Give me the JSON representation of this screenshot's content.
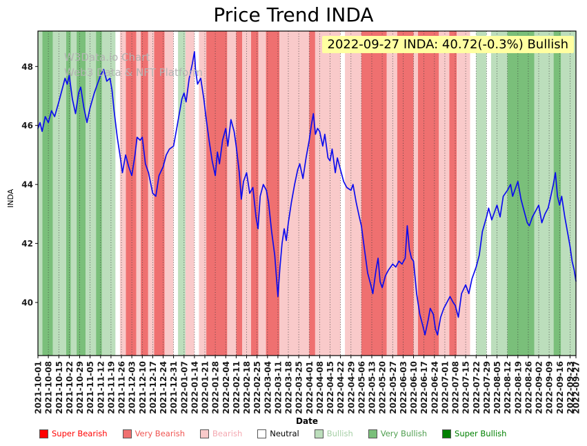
{
  "title": "Price Trend INDA",
  "annotation": "2022-09-27 INDA: 40.72(-0.3%) Bullish",
  "watermark": {
    "line1": "W3Data.io Chart",
    "line2": "Web3 Data & NFT Platform"
  },
  "chart_data": {
    "type": "line",
    "title": "Price Trend INDA",
    "xlabel": "Date",
    "ylabel": "INDA",
    "ylim": [
      38.2,
      49.2
    ],
    "yticks": [
      40,
      42,
      44,
      46,
      48
    ],
    "grid": "vertical-dotted",
    "legend_position": "bottom",
    "x_unit": "weeks_from_first_tick",
    "x_max": 51.57,
    "x_tick_labels": [
      "2021-10-01",
      "2021-10-08",
      "2021-10-15",
      "2021-10-22",
      "2021-10-29",
      "2021-11-05",
      "2021-11-12",
      "2021-11-19",
      "2021-11-26",
      "2021-12-03",
      "2021-12-10",
      "2021-12-17",
      "2021-12-24",
      "2021-12-31",
      "2022-01-07",
      "2022-01-14",
      "2022-01-21",
      "2022-01-28",
      "2022-02-04",
      "2022-02-11",
      "2022-02-18",
      "2022-02-25",
      "2022-03-04",
      "2022-03-11",
      "2022-03-18",
      "2022-03-25",
      "2022-04-01",
      "2022-04-08",
      "2022-04-15",
      "2022-04-22",
      "2022-04-29",
      "2022-05-06",
      "2022-05-13",
      "2022-05-20",
      "2022-05-27",
      "2022-06-03",
      "2022-06-10",
      "2022-06-17",
      "2022-06-24",
      "2022-07-01",
      "2022-07-08",
      "2022-07-15",
      "2022-07-22",
      "2022-07-29",
      "2022-08-05",
      "2022-08-12",
      "2022-08-19",
      "2022-08-26",
      "2022-09-02",
      "2022-09-09",
      "2022-09-16",
      "2022-09-23",
      "2022-09-27"
    ],
    "x_tick_weeks": [
      0,
      1,
      2,
      3,
      4,
      5,
      6,
      7,
      8,
      9,
      10,
      11,
      12,
      13,
      14,
      15,
      16,
      17,
      18,
      19,
      20,
      21,
      22,
      23,
      24,
      25,
      26,
      27,
      28,
      29,
      30,
      31,
      32,
      33,
      34,
      35,
      36,
      37,
      38,
      39,
      40,
      41,
      42,
      43,
      44,
      45,
      46,
      47,
      48,
      49,
      50,
      51,
      51.57
    ],
    "series": [
      {
        "name": "INDA",
        "color": "#0b0bee",
        "x": [
          0,
          0.2,
          0.4,
          0.7,
          1.0,
          1.3,
          1.6,
          2.0,
          2.3,
          2.6,
          2.8,
          3.0,
          3.3,
          3.6,
          3.9,
          4.1,
          4.4,
          4.7,
          5.0,
          5.4,
          5.7,
          6.0,
          6.3,
          6.6,
          6.9,
          7.1,
          7.3,
          7.6,
          7.9,
          8.1,
          8.4,
          8.7,
          9.0,
          9.3,
          9.5,
          9.8,
          10.0,
          10.3,
          10.6,
          11.0,
          11.3,
          11.6,
          12.0,
          12.3,
          12.6,
          13.0,
          13.3,
          13.5,
          13.8,
          14.0,
          14.2,
          14.5,
          14.8,
          15.0,
          15.1,
          15.3,
          15.6,
          15.9,
          16.1,
          16.4,
          16.7,
          17.0,
          17.2,
          17.4,
          17.7,
          18.0,
          18.2,
          18.5,
          18.8,
          19.0,
          19.3,
          19.5,
          19.7,
          20.0,
          20.3,
          20.6,
          20.9,
          21.1,
          21.3,
          21.6,
          21.9,
          22.1,
          22.4,
          22.7,
          23.0,
          23.2,
          23.4,
          23.6,
          23.8,
          24.0,
          24.3,
          24.6,
          24.9,
          25.1,
          25.4,
          25.7,
          26.0,
          26.2,
          26.4,
          26.6,
          26.8,
          27.0,
          27.3,
          27.5,
          27.8,
          28.0,
          28.2,
          28.5,
          28.7,
          29.0,
          29.3,
          29.6,
          30.0,
          30.2,
          30.5,
          30.8,
          31.0,
          31.3,
          31.6,
          31.9,
          32.1,
          32.4,
          32.6,
          32.8,
          33.0,
          33.3,
          33.6,
          34.0,
          34.3,
          34.6,
          34.9,
          35.2,
          35.4,
          35.6,
          35.8,
          36.0,
          36.3,
          36.6,
          36.9,
          37.1,
          37.4,
          37.6,
          37.9,
          38.1,
          38.3,
          38.6,
          38.9,
          39.2,
          39.5,
          39.8,
          40.0,
          40.3,
          40.6,
          41.0,
          41.3,
          41.6,
          42.0,
          42.3,
          42.6,
          43.0,
          43.2,
          43.5,
          43.8,
          44.0,
          44.3,
          44.6,
          45.0,
          45.3,
          45.5,
          45.8,
          46.0,
          46.3,
          46.6,
          46.9,
          47.1,
          47.4,
          47.7,
          48.0,
          48.3,
          48.6,
          48.9,
          49.1,
          49.4,
          49.6,
          49.8,
          50.0,
          50.2,
          50.5,
          50.8,
          51.0,
          51.2,
          51.4,
          51.57
        ],
        "y": [
          45.9,
          46.1,
          45.8,
          46.3,
          46.1,
          46.5,
          46.3,
          46.8,
          47.2,
          47.6,
          47.4,
          47.7,
          46.9,
          46.4,
          47.1,
          47.3,
          46.6,
          46.1,
          46.6,
          47.1,
          47.4,
          47.7,
          47.9,
          47.5,
          47.6,
          47.2,
          46.5,
          45.6,
          44.9,
          44.4,
          45.0,
          44.6,
          44.3,
          45.0,
          45.6,
          45.5,
          45.6,
          44.7,
          44.4,
          43.7,
          43.6,
          44.3,
          44.6,
          45.0,
          45.2,
          45.3,
          45.9,
          46.3,
          46.9,
          47.1,
          46.8,
          47.6,
          48.1,
          48.5,
          47.9,
          47.4,
          47.6,
          46.9,
          46.3,
          45.5,
          44.8,
          44.3,
          45.1,
          44.7,
          45.5,
          45.9,
          45.3,
          46.2,
          45.8,
          45.3,
          44.4,
          43.5,
          44.1,
          44.4,
          43.7,
          43.9,
          42.9,
          42.5,
          43.6,
          44.0,
          43.8,
          43.4,
          42.4,
          41.6,
          40.2,
          41.2,
          42.0,
          42.5,
          42.1,
          42.7,
          43.4,
          44.0,
          44.5,
          44.7,
          44.2,
          44.9,
          45.5,
          46.0,
          46.4,
          45.7,
          45.9,
          45.8,
          45.3,
          45.7,
          44.9,
          44.8,
          45.2,
          44.4,
          44.9,
          44.5,
          44.1,
          43.9,
          43.8,
          44.0,
          43.4,
          42.9,
          42.6,
          41.8,
          41.0,
          40.6,
          40.3,
          41.1,
          41.5,
          40.7,
          40.5,
          40.9,
          41.1,
          41.3,
          41.2,
          41.4,
          41.3,
          41.5,
          42.6,
          41.8,
          41.5,
          41.4,
          40.3,
          39.6,
          39.2,
          38.9,
          39.4,
          39.8,
          39.6,
          39.1,
          38.9,
          39.5,
          39.8,
          40.0,
          40.2,
          40.0,
          39.9,
          39.5,
          40.3,
          40.6,
          40.3,
          40.8,
          41.2,
          41.6,
          42.4,
          42.9,
          43.2,
          42.8,
          43.1,
          43.3,
          42.9,
          43.6,
          43.8,
          44.0,
          43.6,
          43.9,
          44.1,
          43.5,
          43.1,
          42.7,
          42.6,
          42.9,
          43.1,
          43.3,
          42.7,
          43.0,
          43.2,
          43.5,
          44.0,
          44.4,
          43.6,
          43.3,
          43.6,
          42.9,
          42.3,
          41.9,
          41.4,
          41.1,
          40.72
        ]
      }
    ],
    "sentiment_colors": {
      "super_bearish": "#ff2a2a",
      "very_bearish": "#ef7070",
      "bearish": "#f9caca",
      "neutral": "#ffffff",
      "bullish": "#bcdebc",
      "very_bullish": "#7abf7a",
      "super_bullish": "#1e8c1e"
    },
    "bands": [
      [
        0,
        0.43,
        "bullish"
      ],
      [
        0.43,
        1.43,
        "very_bullish"
      ],
      [
        1.43,
        2.71,
        "bullish"
      ],
      [
        2.71,
        3.14,
        "very_bullish"
      ],
      [
        3.14,
        3.71,
        "bullish"
      ],
      [
        3.71,
        4.57,
        "very_bullish"
      ],
      [
        4.57,
        5.57,
        "bullish"
      ],
      [
        5.57,
        6.14,
        "very_bullish"
      ],
      [
        6.14,
        7.43,
        "bullish"
      ],
      [
        7.43,
        7.86,
        "neutral"
      ],
      [
        7.86,
        8.43,
        "bearish"
      ],
      [
        8.43,
        9.43,
        "very_bearish"
      ],
      [
        9.43,
        9.86,
        "bearish"
      ],
      [
        9.86,
        10.57,
        "very_bearish"
      ],
      [
        10.57,
        11.14,
        "bearish"
      ],
      [
        11.14,
        12.14,
        "very_bearish"
      ],
      [
        12.14,
        13.0,
        "bearish"
      ],
      [
        13.0,
        13.43,
        "neutral"
      ],
      [
        13.43,
        14.14,
        "bullish"
      ],
      [
        14.14,
        15.0,
        "bearish"
      ],
      [
        15.0,
        15.43,
        "neutral"
      ],
      [
        15.43,
        16.14,
        "bearish"
      ],
      [
        16.14,
        18.14,
        "very_bearish"
      ],
      [
        18.14,
        19.0,
        "bearish"
      ],
      [
        19.0,
        19.57,
        "very_bearish"
      ],
      [
        19.57,
        20.43,
        "bearish"
      ],
      [
        20.43,
        21.14,
        "very_bearish"
      ],
      [
        21.14,
        21.86,
        "bearish"
      ],
      [
        21.86,
        23.14,
        "very_bearish"
      ],
      [
        23.14,
        26.0,
        "bearish"
      ],
      [
        26.0,
        26.57,
        "very_bearish"
      ],
      [
        26.57,
        29.0,
        "bearish"
      ],
      [
        29.0,
        29.43,
        "neutral"
      ],
      [
        29.43,
        31.0,
        "bearish"
      ],
      [
        31.0,
        33.43,
        "very_bearish"
      ],
      [
        33.43,
        34.43,
        "bearish"
      ],
      [
        34.43,
        36.0,
        "very_bearish"
      ],
      [
        36.0,
        36.43,
        "bearish"
      ],
      [
        36.43,
        38.43,
        "very_bearish"
      ],
      [
        38.43,
        39.43,
        "bearish"
      ],
      [
        39.43,
        40.14,
        "very_bearish"
      ],
      [
        40.14,
        41.43,
        "bearish"
      ],
      [
        41.43,
        42.0,
        "neutral"
      ],
      [
        42.0,
        43.0,
        "bullish"
      ],
      [
        43.0,
        43.43,
        "neutral"
      ],
      [
        43.43,
        45.0,
        "bullish"
      ],
      [
        45.0,
        47.57,
        "very_bullish"
      ],
      [
        47.57,
        49.43,
        "bullish"
      ],
      [
        49.43,
        50.14,
        "very_bullish"
      ],
      [
        50.14,
        51.57,
        "bullish"
      ]
    ],
    "legend": [
      {
        "label": "Super Bearish",
        "color": "#ff0000",
        "text_color": "#ff0000"
      },
      {
        "label": "Very Bearish",
        "color": "#ef7070",
        "text_color": "#ef5350"
      },
      {
        "label": "Bearish",
        "color": "#f9caca",
        "text_color": "#f4a7b0"
      },
      {
        "label": "Neutral",
        "color": "#ffffff",
        "text_color": "#000000"
      },
      {
        "label": "Bullish",
        "color": "#bcdebc",
        "text_color": "#a5cfa5"
      },
      {
        "label": "Very Bullish",
        "color": "#7abf7a",
        "text_color": "#4f9e4f"
      },
      {
        "label": "Super Bullish",
        "color": "#008000",
        "text_color": "#008000"
      }
    ]
  }
}
